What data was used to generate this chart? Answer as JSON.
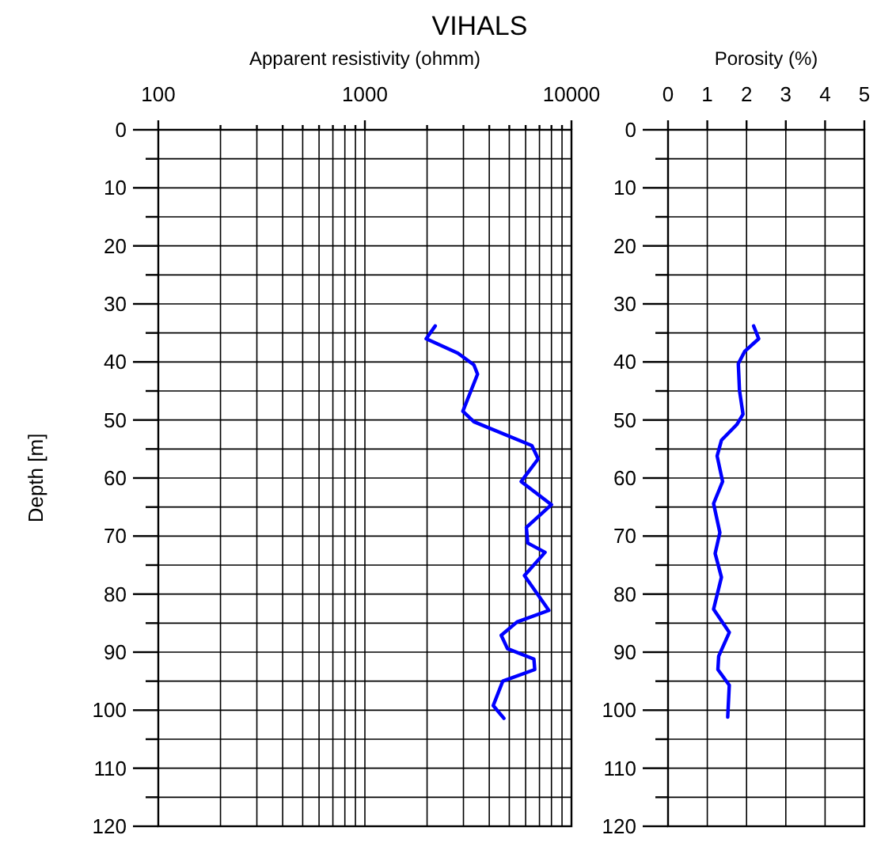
{
  "chart_data": [
    {
      "type": "line",
      "title": "VIHALS",
      "xlabel": "Apparent resistivity (ohmm)",
      "ylabel": "Depth [m]",
      "log": "x",
      "grid": true,
      "xlim": [
        100,
        10000
      ],
      "ylim": [
        120,
        0
      ],
      "xticks": [
        100,
        {
          "value": 200,
          "label": null
        },
        {
          "value": 300,
          "label": null
        },
        {
          "value": 400,
          "label": null
        },
        {
          "value": 500,
          "label": null
        },
        {
          "value": 600,
          "label": null
        },
        {
          "value": 700,
          "label": null
        },
        {
          "value": 800,
          "label": null
        },
        {
          "value": 900,
          "label": null
        },
        1000,
        {
          "value": 2000,
          "label": null
        },
        {
          "value": 3000,
          "label": null
        },
        {
          "value": 4000,
          "label": null
        },
        {
          "value": 5000,
          "label": null
        },
        {
          "value": 6000,
          "label": null
        },
        {
          "value": 7000,
          "label": null
        },
        {
          "value": 8000,
          "label": null
        },
        {
          "value": 9000,
          "label": null
        },
        10000
      ],
      "yticks": [
        0,
        {
          "value": 5,
          "label": null
        },
        10,
        {
          "value": 15,
          "label": null
        },
        20,
        {
          "value": 25,
          "label": null
        },
        30,
        {
          "value": 35,
          "label": null
        },
        40,
        {
          "value": 45,
          "label": null
        },
        50,
        {
          "value": 55,
          "label": null
        },
        60,
        {
          "value": 65,
          "label": null
        },
        70,
        {
          "value": 75,
          "label": null
        },
        80,
        {
          "value": 85,
          "label": null
        },
        90,
        {
          "value": 95,
          "label": null
        },
        100,
        {
          "value": 105,
          "label": null
        },
        110,
        {
          "value": 115,
          "label": null
        },
        120
      ],
      "series": [
        {
          "color": "#0000ff",
          "x": [
            2190,
            1980,
            2820,
            3370,
            3510,
            2980,
            3370,
            6430,
            6900,
            5710,
            8000,
            6050,
            6140,
            7450,
            5920,
            7770,
            5450,
            4570,
            4900,
            6580,
            6640,
            4650,
            4180,
            4710
          ],
          "values": [
            33.8,
            36,
            38.5,
            40.5,
            42.1,
            48.5,
            50.3,
            54.4,
            56.7,
            60.6,
            64.6,
            68.5,
            71.2,
            72.8,
            76.8,
            82.8,
            84.8,
            87.1,
            89.4,
            91.2,
            93,
            95,
            99.2,
            101.4
          ]
        }
      ]
    },
    {
      "type": "line",
      "xlabel": "Porosity (%)",
      "grid": true,
      "xlim": [
        0,
        5
      ],
      "ylim": [
        120,
        0
      ],
      "xticks": [
        0,
        1,
        2,
        3,
        4,
        5
      ],
      "yticks": [
        0,
        {
          "value": 5,
          "label": null
        },
        10,
        {
          "value": 15,
          "label": null
        },
        20,
        {
          "value": 25,
          "label": null
        },
        30,
        {
          "value": 35,
          "label": null
        },
        40,
        {
          "value": 45,
          "label": null
        },
        50,
        {
          "value": 55,
          "label": null
        },
        60,
        {
          "value": 65,
          "label": null
        },
        70,
        {
          "value": 75,
          "label": null
        },
        80,
        {
          "value": 85,
          "label": null
        },
        90,
        {
          "value": 95,
          "label": null
        },
        100,
        {
          "value": 105,
          "label": null
        },
        110,
        {
          "value": 115,
          "label": null
        },
        120
      ],
      "series": [
        {
          "color": "#0000ff",
          "x": [
            2.18,
            2.31,
            1.95,
            1.79,
            1.82,
            1.91,
            1.75,
            1.36,
            1.25,
            1.39,
            1.16,
            1.32,
            1.2,
            1.36,
            1.16,
            1.56,
            1.29,
            1.27,
            1.56,
            1.52
          ],
          "values": [
            33.8,
            36,
            38.2,
            40.3,
            44.9,
            49,
            50.8,
            53.5,
            56.2,
            60.6,
            64.4,
            69.4,
            73,
            77.1,
            82.6,
            86.6,
            90.7,
            93,
            95.7,
            101.2
          ]
        }
      ]
    }
  ]
}
